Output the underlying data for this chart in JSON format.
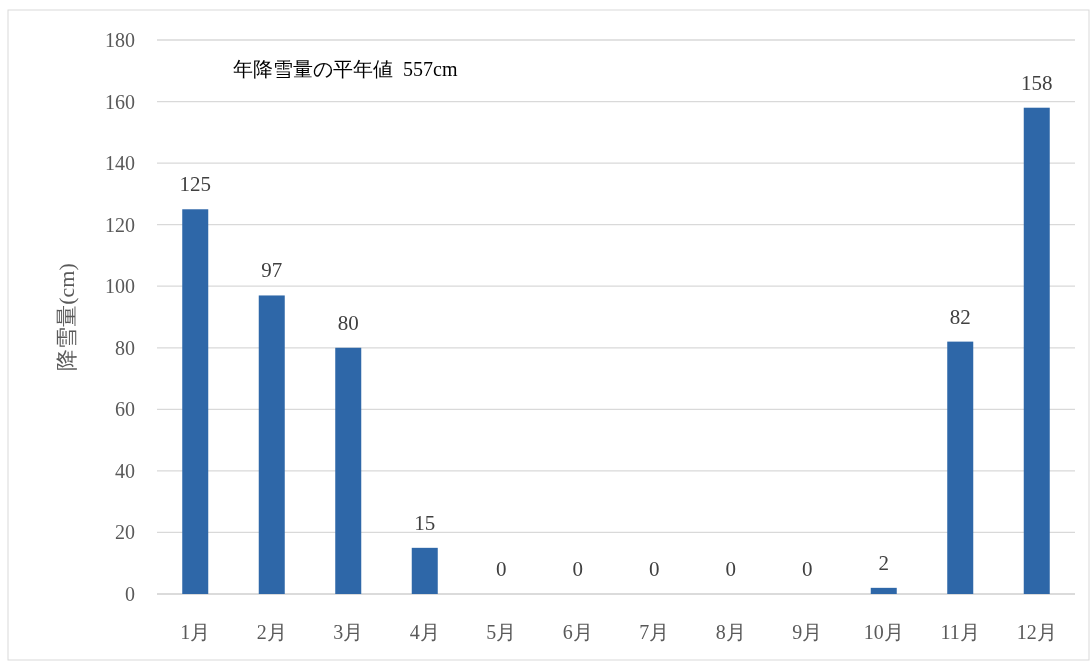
{
  "chart_data": {
    "type": "bar",
    "ylabel": "降雪量(cm)",
    "annotations": [
      "年降雪量の平年値  557cm"
    ],
    "categories": [
      "1月",
      "2月",
      "3月",
      "4月",
      "5月",
      "6月",
      "7月",
      "8月",
      "9月",
      "10月",
      "11月",
      "12月"
    ],
    "values": [
      125,
      97,
      80,
      15,
      0,
      0,
      0,
      0,
      0,
      2,
      82,
      158
    ],
    "color": "#2e67a8",
    "ylim": [
      0,
      180
    ],
    "yticks": [
      0,
      20,
      40,
      60,
      80,
      100,
      120,
      140,
      160,
      180
    ],
    "grid": "y",
    "data_labels": true
  }
}
